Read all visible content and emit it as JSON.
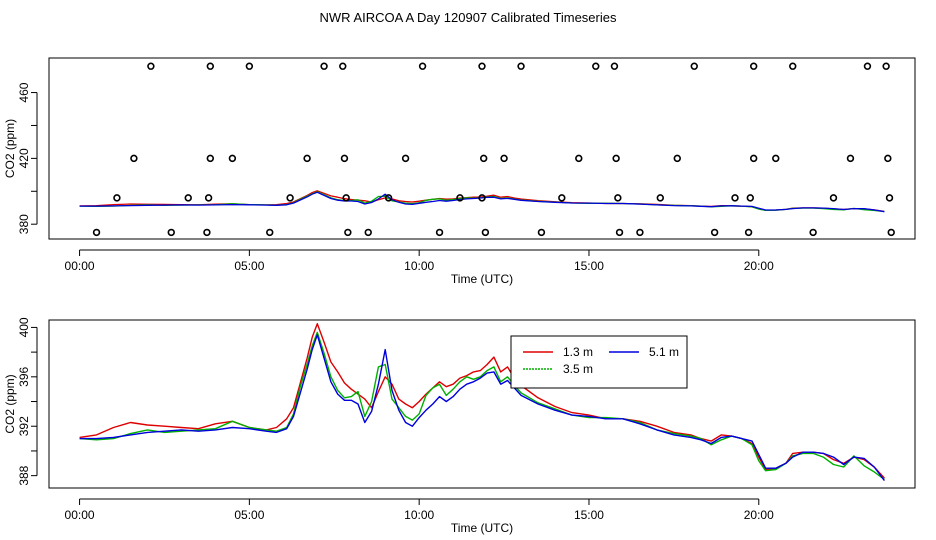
{
  "page_title": "NWR AIRCOA A  Day 120907  Calibrated Timeseries",
  "colors": {
    "red": "#dd0000",
    "green": "#00b000",
    "blue": "#0000dd",
    "marker": "#000000"
  },
  "chart_data": [
    {
      "type": "scatter+line",
      "title": "",
      "xlabel": "Time (UTC)",
      "ylabel": "CO2 (ppm)",
      "xlim": [
        -0.9,
        24.6
      ],
      "ylim": [
        371,
        481
      ],
      "xticks": [
        0,
        5,
        10,
        15,
        20
      ],
      "xtick_labels": [
        "00:00",
        "05:00",
        "10:00",
        "15:00",
        "20:00"
      ],
      "yticks": [
        380,
        400,
        420,
        440,
        460
      ],
      "ytick_labels": [
        "380",
        "",
        "420",
        "",
        "460"
      ],
      "point_levels": [
        {
          "name": "top",
          "y": 476,
          "x": [
            2.1,
            3.85,
            5.0,
            7.2,
            7.75,
            10.1,
            11.85,
            13.0,
            15.2,
            15.75,
            18.1,
            19.85,
            21.0,
            23.2,
            23.75
          ]
        },
        {
          "name": "upper",
          "y": 420,
          "x": [
            1.6,
            3.85,
            4.5,
            6.7,
            7.8,
            9.6,
            11.9,
            12.5,
            14.7,
            15.8,
            17.6,
            19.85,
            20.5,
            22.7,
            23.8
          ]
        },
        {
          "name": "mid",
          "y": 396,
          "x": [
            1.1,
            3.2,
            3.8,
            6.2,
            7.85,
            9.1,
            11.2,
            11.85,
            14.2,
            15.85,
            17.1,
            19.3,
            19.75,
            22.2,
            23.85
          ]
        },
        {
          "name": "low",
          "y": 375,
          "x": [
            0.5,
            2.7,
            3.75,
            5.6,
            7.9,
            8.5,
            10.6,
            11.95,
            13.6,
            15.9,
            16.5,
            18.7,
            19.7,
            21.6,
            23.9
          ]
        }
      ],
      "series": [
        {
          "name": "1.3 m",
          "color": "red"
        },
        {
          "name": "3.5 m",
          "color": "green"
        },
        {
          "name": "5.1 m",
          "color": "blue"
        }
      ]
    },
    {
      "type": "line",
      "title": "",
      "xlabel": "Time (UTC)",
      "ylabel": "CO2 (ppm)",
      "xlim": [
        -0.9,
        24.6
      ],
      "ylim": [
        387,
        400.6
      ],
      "xticks": [
        0,
        5,
        10,
        15,
        20
      ],
      "xtick_labels": [
        "00:00",
        "05:00",
        "10:00",
        "15:00",
        "20:00"
      ],
      "yticks": [
        388,
        390,
        392,
        394,
        396,
        398,
        400
      ],
      "ytick_labels": [
        "388",
        "",
        "392",
        "",
        "396",
        "",
        "400"
      ],
      "legend": {
        "position": "top-right",
        "items": [
          "1.3 m",
          "3.5 m",
          "5.1 m"
        ]
      },
      "series": [
        {
          "name": "1.3 m",
          "color": "red",
          "x": [
            0.0,
            0.5,
            1.0,
            1.5,
            2.0,
            2.5,
            3.0,
            3.5,
            4.0,
            4.5,
            5.0,
            5.5,
            5.8,
            6.1,
            6.3,
            6.5,
            6.7,
            6.85,
            7.0,
            7.2,
            7.4,
            7.6,
            7.8,
            8.0,
            8.2,
            8.4,
            8.6,
            8.8,
            9.0,
            9.2,
            9.4,
            9.6,
            9.8,
            10.0,
            10.2,
            10.4,
            10.6,
            10.8,
            11.0,
            11.2,
            11.4,
            11.6,
            11.8,
            12.0,
            12.2,
            12.4,
            12.6,
            12.8,
            13.0,
            13.5,
            14.0,
            14.5,
            15.0,
            15.5,
            16.0,
            16.5,
            17.0,
            17.5,
            18.0,
            18.3,
            18.6,
            18.9,
            19.2,
            19.5,
            19.8,
            20.0,
            20.2,
            20.5,
            20.8,
            21.0,
            21.3,
            21.6,
            21.9,
            22.2,
            22.5,
            22.8,
            23.1,
            23.4,
            23.7
          ],
          "y": [
            391.1,
            391.3,
            391.9,
            392.3,
            392.1,
            392.0,
            391.9,
            391.8,
            392.2,
            392.4,
            391.9,
            391.7,
            391.9,
            392.6,
            393.5,
            395.5,
            397.5,
            399.2,
            400.3,
            398.8,
            397.2,
            396.4,
            395.5,
            395.0,
            394.6,
            394.2,
            393.5,
            394.8,
            396.0,
            395.4,
            394.2,
            393.8,
            393.5,
            394.0,
            394.6,
            395.1,
            395.6,
            395.2,
            395.4,
            395.9,
            396.1,
            396.4,
            396.5,
            397.0,
            397.6,
            396.4,
            396.8,
            395.9,
            395.3,
            394.3,
            393.6,
            393.1,
            392.9,
            392.6,
            392.6,
            392.4,
            392.0,
            391.5,
            391.3,
            391.0,
            390.8,
            391.3,
            391.2,
            391.0,
            390.6,
            389.5,
            388.5,
            388.6,
            389.0,
            389.8,
            389.9,
            389.9,
            389.8,
            389.3,
            389.0,
            389.5,
            389.3,
            388.7,
            387.8
          ]
        },
        {
          "name": "3.5 m",
          "color": "green",
          "x": [
            0.0,
            0.5,
            1.0,
            1.5,
            2.0,
            2.5,
            3.0,
            3.5,
            4.0,
            4.5,
            5.0,
            5.5,
            5.8,
            6.1,
            6.3,
            6.5,
            6.7,
            6.85,
            7.0,
            7.2,
            7.4,
            7.6,
            7.8,
            8.0,
            8.2,
            8.4,
            8.6,
            8.8,
            9.0,
            9.2,
            9.4,
            9.6,
            9.8,
            10.0,
            10.2,
            10.4,
            10.6,
            10.8,
            11.0,
            11.2,
            11.4,
            11.6,
            11.8,
            12.0,
            12.2,
            12.4,
            12.6,
            12.8,
            13.0,
            13.5,
            14.0,
            14.5,
            15.0,
            15.5,
            16.0,
            16.5,
            17.0,
            17.5,
            18.0,
            18.3,
            18.6,
            18.9,
            19.2,
            19.5,
            19.8,
            20.0,
            20.2,
            20.5,
            20.8,
            21.0,
            21.3,
            21.6,
            21.9,
            22.2,
            22.5,
            22.8,
            23.1,
            23.4,
            23.7
          ],
          "y": [
            391.0,
            390.9,
            391.0,
            391.4,
            391.7,
            391.5,
            391.6,
            391.7,
            391.8,
            392.4,
            391.9,
            391.7,
            391.6,
            391.9,
            393.0,
            395.2,
            397.0,
            398.5,
            399.6,
            397.9,
            396.0,
            394.9,
            394.3,
            394.4,
            394.8,
            392.8,
            394.0,
            396.8,
            397.0,
            394.2,
            393.5,
            392.8,
            392.5,
            393.0,
            394.5,
            395.1,
            395.4,
            394.5,
            395.0,
            395.6,
            396.0,
            395.8,
            396.0,
            396.5,
            396.8,
            395.6,
            396.0,
            395.3,
            394.7,
            393.9,
            393.4,
            392.9,
            392.7,
            392.7,
            392.6,
            392.3,
            391.7,
            391.4,
            391.2,
            391.0,
            390.5,
            390.9,
            391.2,
            391.0,
            390.5,
            389.2,
            388.4,
            388.5,
            389.0,
            389.6,
            389.8,
            389.8,
            389.5,
            388.9,
            388.7,
            389.6,
            388.8,
            388.3,
            387.7
          ]
        },
        {
          "name": "5.1 m",
          "color": "blue",
          "x": [
            0.0,
            0.5,
            1.0,
            1.5,
            2.0,
            2.5,
            3.0,
            3.5,
            4.0,
            4.5,
            5.0,
            5.5,
            5.8,
            6.1,
            6.3,
            6.5,
            6.7,
            6.85,
            7.0,
            7.2,
            7.4,
            7.6,
            7.8,
            8.0,
            8.2,
            8.4,
            8.6,
            8.8,
            9.0,
            9.2,
            9.4,
            9.6,
            9.8,
            10.0,
            10.2,
            10.4,
            10.6,
            10.8,
            11.0,
            11.2,
            11.4,
            11.6,
            11.8,
            12.0,
            12.2,
            12.4,
            12.6,
            12.8,
            13.0,
            13.5,
            14.0,
            14.5,
            15.0,
            15.5,
            16.0,
            16.5,
            17.0,
            17.5,
            18.0,
            18.3,
            18.6,
            18.9,
            19.2,
            19.5,
            19.8,
            20.0,
            20.2,
            20.5,
            20.8,
            21.0,
            21.3,
            21.6,
            21.9,
            22.2,
            22.5,
            22.8,
            23.1,
            23.4,
            23.7
          ],
          "y": [
            391.0,
            391.0,
            391.1,
            391.3,
            391.5,
            391.6,
            391.7,
            391.6,
            391.7,
            391.9,
            391.8,
            391.6,
            391.5,
            391.8,
            392.8,
            394.7,
            396.6,
            398.2,
            399.4,
            397.5,
            395.6,
            394.6,
            394.1,
            394.1,
            393.8,
            392.3,
            393.2,
            395.4,
            398.2,
            394.9,
            393.3,
            392.3,
            392.0,
            392.7,
            393.3,
            393.8,
            394.4,
            394.0,
            394.4,
            395.0,
            395.4,
            395.6,
            395.9,
            396.3,
            396.4,
            395.4,
            395.7,
            395.1,
            394.5,
            393.8,
            393.3,
            392.9,
            392.8,
            392.6,
            392.6,
            392.2,
            391.7,
            391.3,
            391.1,
            390.9,
            390.6,
            391.1,
            391.2,
            391.0,
            390.8,
            389.7,
            388.6,
            388.6,
            389.0,
            389.5,
            389.9,
            389.9,
            389.8,
            389.5,
            388.9,
            389.5,
            389.4,
            388.7,
            387.6
          ]
        }
      ]
    }
  ]
}
